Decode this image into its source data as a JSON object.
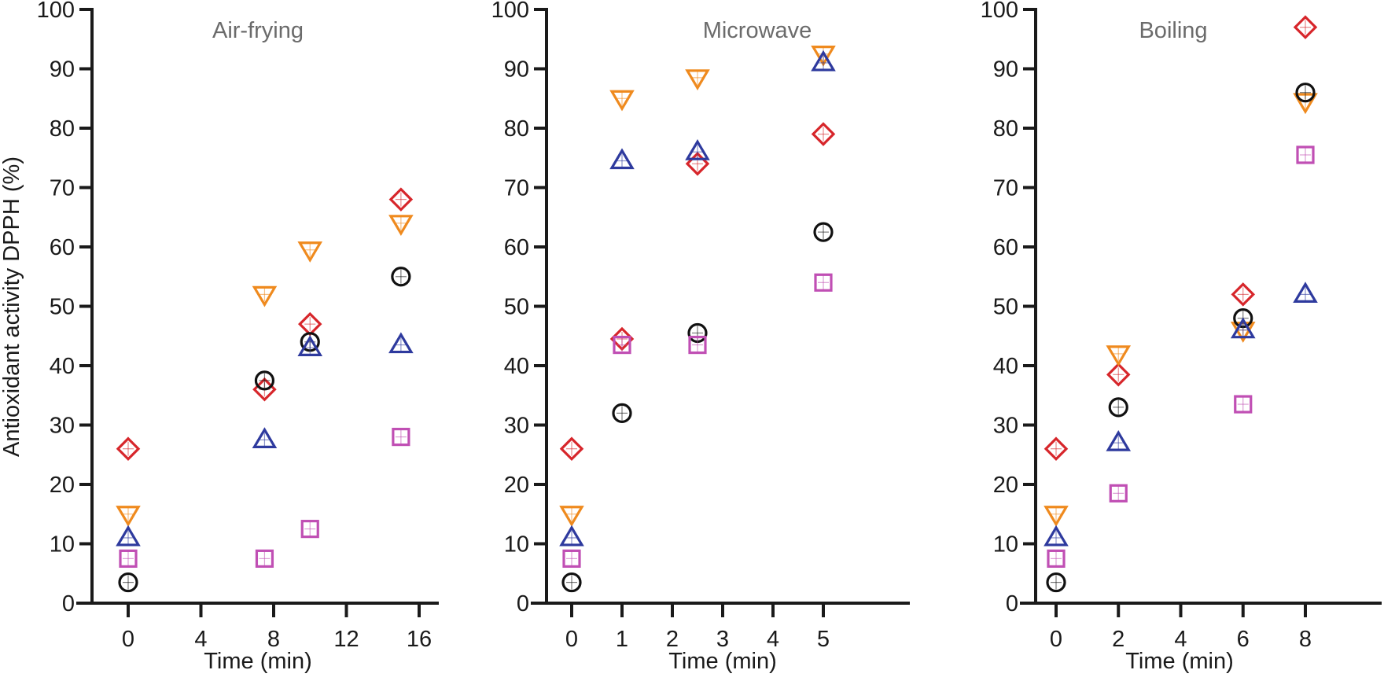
{
  "chart_data": {
    "type": "scatter",
    "ylabel": "Antioxidant activity DPPH (%)",
    "ylim": [
      0,
      100
    ],
    "yticks": [
      "0",
      "10",
      "20",
      "30",
      "40",
      "50",
      "60",
      "70",
      "80",
      "90",
      "100"
    ],
    "legend": "none",
    "grid": false,
    "series_styles": [
      {
        "name": "red-diamond",
        "marker": "diamond",
        "color": "#d7262b"
      },
      {
        "name": "orange-down-triangle",
        "marker": "triangle-down",
        "color": "#ef8a1e"
      },
      {
        "name": "black-circle",
        "marker": "circle",
        "color": "#111111"
      },
      {
        "name": "blue-up-triangle",
        "marker": "triangle-up",
        "color": "#2e3a9e"
      },
      {
        "name": "magenta-square",
        "marker": "square",
        "color": "#c04fb4"
      }
    ],
    "panels": [
      {
        "title": "Air-frying",
        "xlabel": "Time (min)",
        "xlim": [
          -2.3,
          17
        ],
        "xticks": [
          "0",
          "4",
          "8",
          "12",
          "16"
        ],
        "x": [
          0,
          7.5,
          10,
          15
        ],
        "series": [
          {
            "name": "red-diamond",
            "values": [
              26,
              36,
              47,
              68
            ]
          },
          {
            "name": "orange-down-triangle",
            "values": [
              15,
              52,
              59.5,
              64
            ]
          },
          {
            "name": "black-circle",
            "values": [
              3.5,
              37.5,
              44,
              55
            ]
          },
          {
            "name": "blue-up-triangle",
            "values": [
              11,
              27.5,
              43,
              43.5
            ]
          },
          {
            "name": "magenta-square",
            "values": [
              7.5,
              7.5,
              12.5,
              28
            ]
          }
        ]
      },
      {
        "title": "Microwave",
        "xlabel": "Time (min)",
        "xlim": [
          -0.5,
          5.17
        ],
        "xticks": [
          "0",
          "1",
          "2",
          "3",
          "4",
          "5"
        ],
        "x": [
          0,
          1,
          2.5,
          5
        ],
        "series": [
          {
            "name": "red-diamond",
            "values": [
              26,
              44.5,
              74,
              79
            ]
          },
          {
            "name": "orange-down-triangle",
            "values": [
              15,
              85,
              88.5,
              92.5
            ]
          },
          {
            "name": "black-circle",
            "values": [
              3.5,
              32,
              45.5,
              62.5
            ]
          },
          {
            "name": "blue-up-triangle",
            "values": [
              11,
              74.5,
              76,
              91
            ]
          },
          {
            "name": "magenta-square",
            "values": [
              7.5,
              43.5,
              43.5,
              54
            ]
          }
        ]
      },
      {
        "title": "Boiling",
        "xlabel": "Time (min)",
        "xlim": [
          -0.65,
          10.5
        ],
        "xticks": [
          "0",
          "2",
          "4",
          "6",
          "8"
        ],
        "x": [
          0,
          2,
          6,
          8
        ],
        "series": [
          {
            "name": "red-diamond",
            "values": [
              26,
              38.5,
              52,
              97
            ]
          },
          {
            "name": "orange-down-triangle",
            "values": [
              15,
              42,
              46,
              84.5
            ]
          },
          {
            "name": "black-circle",
            "values": [
              3.5,
              33,
              48,
              86
            ]
          },
          {
            "name": "blue-up-triangle",
            "values": [
              11,
              27,
              46,
              52
            ]
          },
          {
            "name": "magenta-square",
            "values": [
              7.5,
              18.5,
              33.5,
              75.5
            ]
          }
        ]
      }
    ]
  }
}
